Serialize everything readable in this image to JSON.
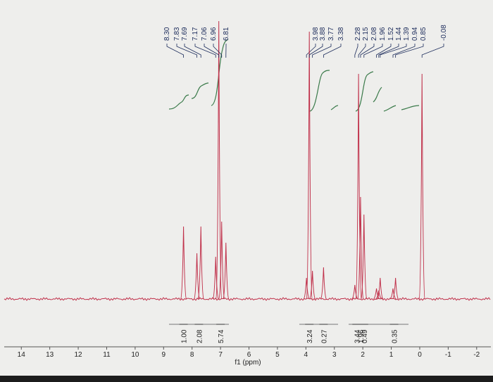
{
  "chart_data": {
    "type": "nmr",
    "xlabel": "f1 (ppm)",
    "xlim": [
      14.6,
      -2.5
    ],
    "ylim": [
      0,
      420
    ],
    "xticks": [
      14,
      13,
      12,
      11,
      10,
      9,
      8,
      7,
      6,
      5,
      4,
      3,
      2,
      1,
      0,
      -1,
      -2
    ],
    "color": "#c0304a",
    "peaks": [
      {
        "x": 8.3,
        "value": 103,
        "label": "8.30"
      },
      {
        "x": 7.83,
        "value": 65,
        "label": "7.83"
      },
      {
        "x": 7.69,
        "value": 103,
        "label": "7.69"
      },
      {
        "x": 7.17,
        "value": 60,
        "label": "7.17"
      },
      {
        "x": 7.06,
        "value": 395,
        "label": "7.06"
      },
      {
        "x": 6.96,
        "value": 110,
        "label": "6.96"
      },
      {
        "x": 6.81,
        "value": 80,
        "label": "6.81"
      },
      {
        "x": 3.98,
        "value": 30,
        "label": "3.98"
      },
      {
        "x": 3.88,
        "value": 380,
        "label": "3.88"
      },
      {
        "x": 3.77,
        "value": 40,
        "label": "3.77"
      },
      {
        "x": 3.38,
        "value": 45,
        "label": "3.38"
      },
      {
        "x": 2.28,
        "value": 20,
        "label": "2.28"
      },
      {
        "x": 2.15,
        "value": 320,
        "label": "2.15"
      },
      {
        "x": 2.08,
        "value": 145,
        "label": "2.08"
      },
      {
        "x": 1.96,
        "value": 120,
        "label": "1.96"
      },
      {
        "x": 1.52,
        "value": 15,
        "label": "1.52"
      },
      {
        "x": 1.44,
        "value": 12,
        "label": "1.44"
      },
      {
        "x": 1.39,
        "value": 30,
        "label": "1.39"
      },
      {
        "x": 0.94,
        "value": 15,
        "label": "0.94"
      },
      {
        "x": 0.85,
        "value": 30,
        "label": "0.85"
      },
      {
        "x": -0.08,
        "value": 320,
        "label": "-0.08"
      }
    ],
    "integrals": [
      {
        "x": 8.3,
        "label": "1.00"
      },
      {
        "x": 7.76,
        "label": "2.08"
      },
      {
        "x": 7.0,
        "label": "5.74"
      },
      {
        "x": 3.88,
        "label": "3.24"
      },
      {
        "x": 3.38,
        "label": "0.27"
      },
      {
        "x": 2.22,
        "label": "3.44"
      },
      {
        "x": 2.08,
        "label": "1.96"
      },
      {
        "x": 1.96,
        "label": "0.49"
      },
      {
        "x": 0.9,
        "label": "0.35"
      }
    ]
  }
}
